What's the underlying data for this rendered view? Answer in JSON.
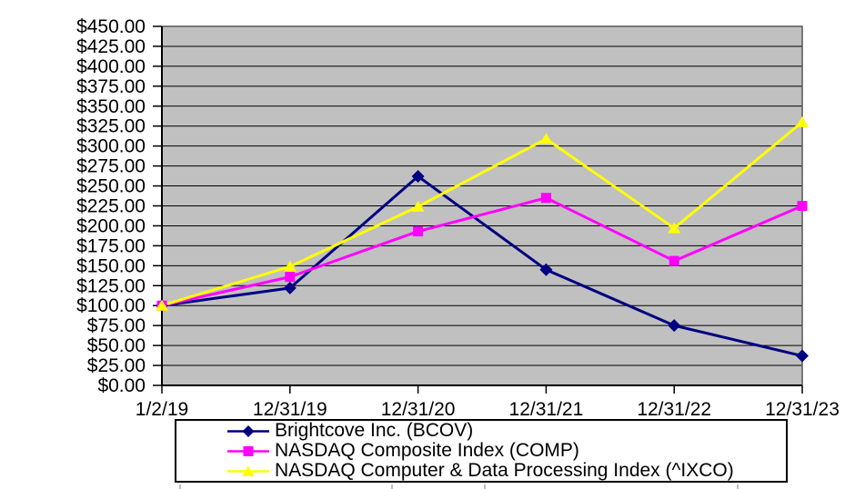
{
  "chart_data": {
    "type": "line",
    "title": "",
    "xlabel": "",
    "ylabel": "",
    "categories": [
      "1/2/19",
      "12/31/19",
      "12/31/20",
      "12/31/21",
      "12/31/22",
      "12/31/23"
    ],
    "y_axis": {
      "min": 0,
      "max": 450,
      "step": 25,
      "tick_labels": [
        "$450.00",
        "$425.00",
        "$400.00",
        "$375.00",
        "$350.00",
        "$325.00",
        "$300.00",
        "$275.00",
        "$250.00",
        "$225.00",
        "$200.00",
        "$175.00",
        "$150.00",
        "$125.00",
        "$100.00",
        "$75.00",
        "$50.00",
        "$25.00",
        "$0.00"
      ]
    },
    "grid": true,
    "legend_position": "bottom",
    "colors": {
      "plot_background": "#c0c0c0",
      "gridline": "#000000",
      "axis": "#000000",
      "text": "#000000",
      "legend_border": "#000000",
      "legend_background": "#ffffff"
    },
    "series": [
      {
        "name": "Brightcove Inc. (BCOV)",
        "color": "#000080",
        "marker": "diamond",
        "values": [
          100,
          122,
          262,
          145,
          75,
          37
        ]
      },
      {
        "name": "NASDAQ Composite Index (COMP)",
        "color": "#ff00ff",
        "marker": "square",
        "values": [
          100,
          136,
          193,
          235,
          156,
          225
        ]
      },
      {
        "name": "NASDAQ Computer & Data Processing Index (^IXCO)",
        "color": "#ffff00",
        "marker": "triangle",
        "values": [
          100,
          149,
          224,
          309,
          197,
          330
        ]
      }
    ]
  }
}
